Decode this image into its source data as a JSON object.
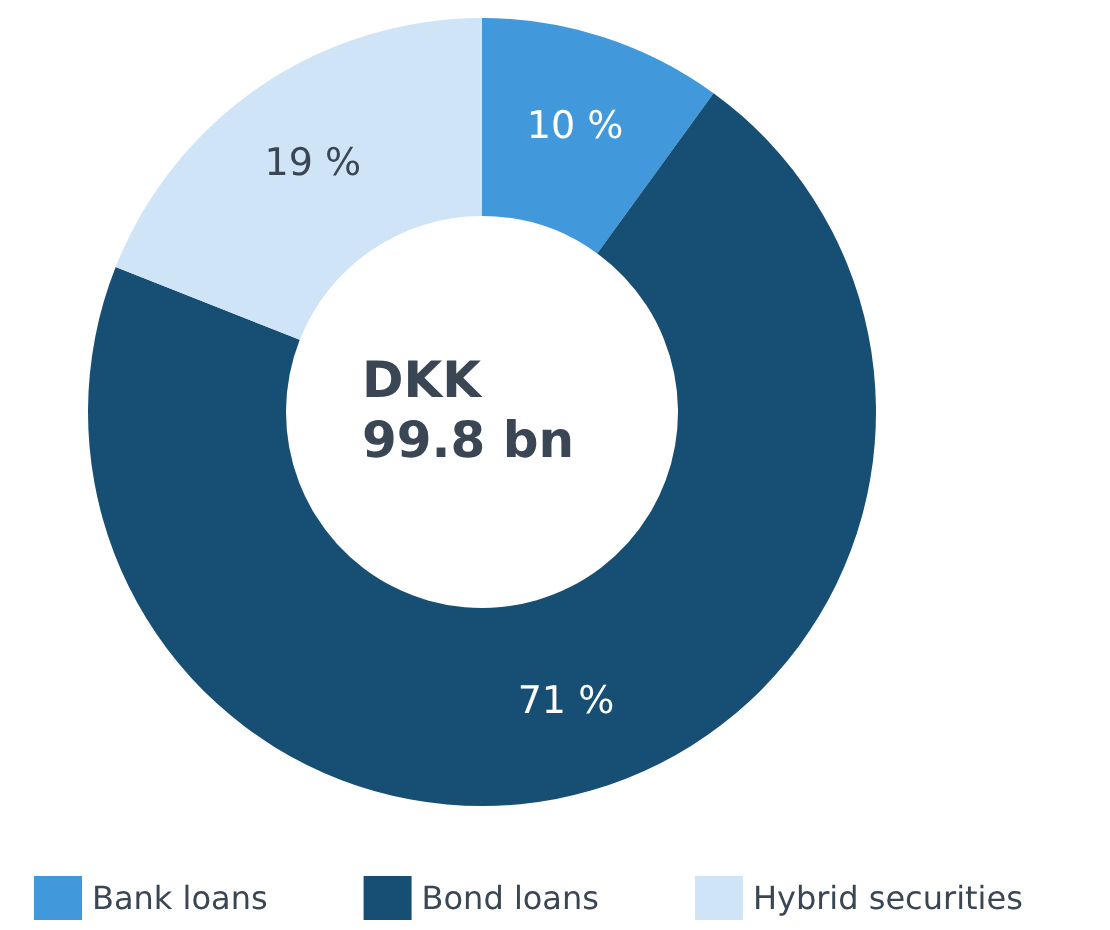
{
  "chart_data": {
    "type": "donut",
    "categories": [
      "Bank loans",
      "Bond loans",
      "Hybrid securities"
    ],
    "values": [
      10,
      71,
      19
    ],
    "colors": [
      "#4199dc",
      "#174f74",
      "#d0e4f8"
    ],
    "value_labels": [
      "10 %",
      "71 %",
      "19 %"
    ],
    "annotations": [
      "DKK",
      "99.8 bn"
    ],
    "legend": "bottom"
  }
}
